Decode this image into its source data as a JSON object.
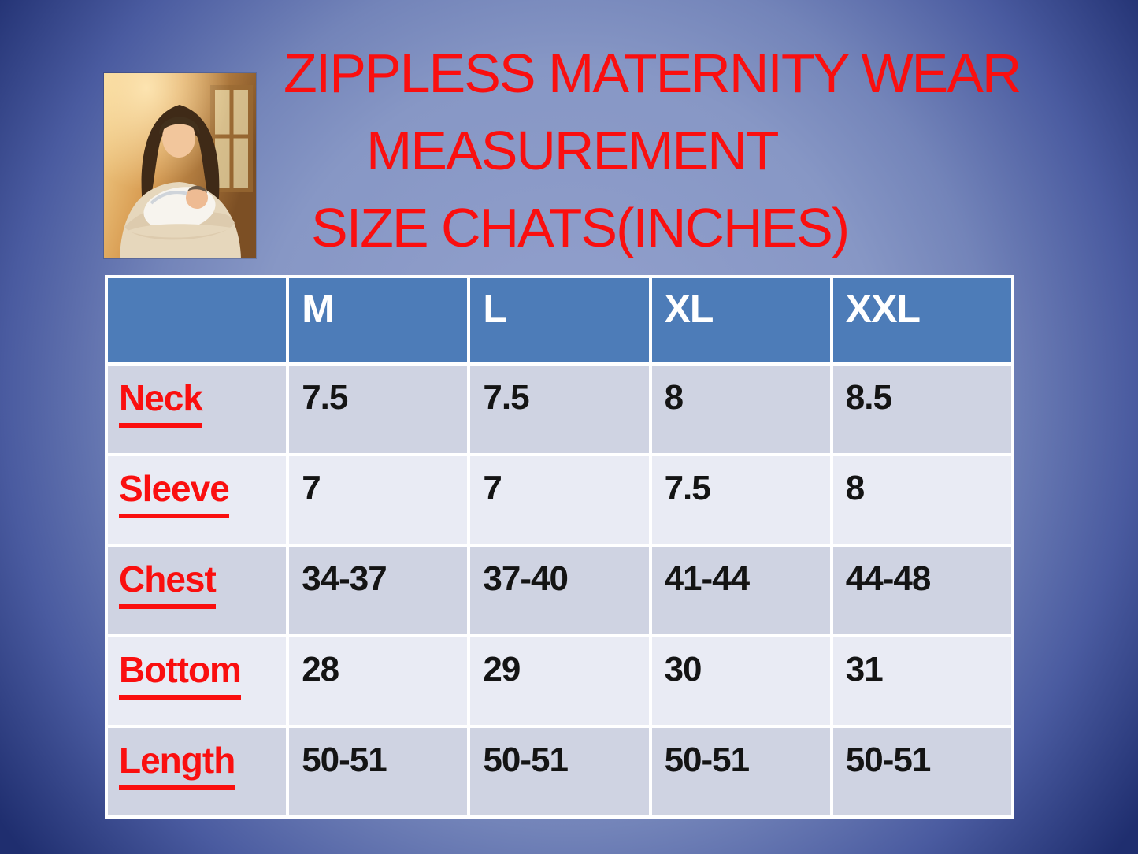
{
  "title": {
    "line1": "ZIPPLESS MATERNITY WEAR",
    "line2": "MEASUREMENT",
    "line3": "SIZE CHATS(INCHES)"
  },
  "photo": {
    "description": "Mother holding newborn baby near sunlit window"
  },
  "table": {
    "columns": [
      "",
      "M",
      "L",
      "XL",
      "XXL"
    ],
    "rows": [
      {
        "label": "Neck",
        "values": [
          "7.5",
          "7.5",
          "8",
          "8.5"
        ]
      },
      {
        "label": "Sleeve",
        "values": [
          "7",
          "7",
          "7.5",
          "8"
        ]
      },
      {
        "label": "Chest",
        "values": [
          "34-37",
          "37-40",
          "41-44",
          "44-48"
        ]
      },
      {
        "label": "Bottom",
        "values": [
          "28",
          "29",
          "30",
          "31"
        ]
      },
      {
        "label": "Length",
        "values": [
          "50-51",
          "50-51",
          "50-51",
          "50-51"
        ]
      }
    ]
  },
  "colors": {
    "title_red": "#fa0f0f",
    "header_blue": "#4d7cb8",
    "row_dark": "#cfd3e2",
    "row_light": "#e9ebf4",
    "value_black": "#141414",
    "border_white": "#ffffff",
    "bg_center": "#93a1cd",
    "bg_corner": "#1f2e6f"
  }
}
